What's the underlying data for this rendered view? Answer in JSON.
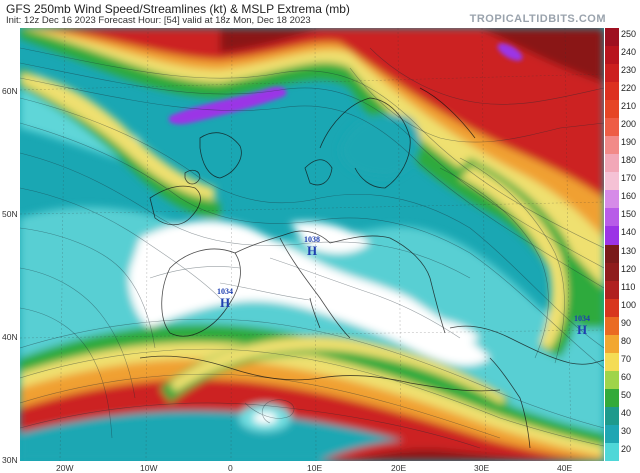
{
  "header": {
    "title": "GFS 250mb Wind Speed/Streamlines (kt) & MSLP Extrema (mb)",
    "subtitle": "Init: 12z Dec 16 2023   Forecast Hour: [54]   valid at 18z Mon, Dec 18 2023",
    "brand": "TROPICALTIDBITS.COM"
  },
  "latitude_labels": [
    "60N",
    "50N",
    "40N",
    "30N"
  ],
  "longitude_labels": [
    "20W",
    "10W",
    "0",
    "10E",
    "20E",
    "30E",
    "40E"
  ],
  "colorbar": {
    "unit": "kt",
    "ticks": [
      "250",
      "240",
      "230",
      "220",
      "210",
      "200",
      "190",
      "180",
      "170",
      "160",
      "150",
      "140",
      "130",
      "120",
      "110",
      "100",
      "90",
      "80",
      "70",
      "60",
      "50",
      "40",
      "30",
      "20"
    ],
    "colors": [
      "#9e1020",
      "#b8141e",
      "#cc1f1f",
      "#dd3020",
      "#e64525",
      "#ee5d45",
      "#f28a88",
      "#f2a8b8",
      "#f5c2d5",
      "#d68be8",
      "#b85ce8",
      "#9b34e6",
      "#7a1a1a",
      "#8f1c1c",
      "#b02020",
      "#d8361e",
      "#ea6b22",
      "#f2a730",
      "#f4dc55",
      "#9fd44a",
      "#33aa3a",
      "#1e9a8c",
      "#1fa6b3",
      "#4fd7d8"
    ]
  },
  "pressure_centers": [
    {
      "value": "1038",
      "symbol": "H"
    },
    {
      "value": "1034",
      "symbol": "H"
    },
    {
      "value": "1034",
      "symbol": "H"
    }
  ],
  "map_colors": {
    "background": "#1aa7b3",
    "calm": "#ffffff",
    "light": "#6fdde0",
    "green": "#2faa3c",
    "yellow": "#efe070",
    "orange": "#f0a030",
    "red": "#cc2020",
    "darkred": "#8a1414",
    "purple": "#9b34e6"
  }
}
